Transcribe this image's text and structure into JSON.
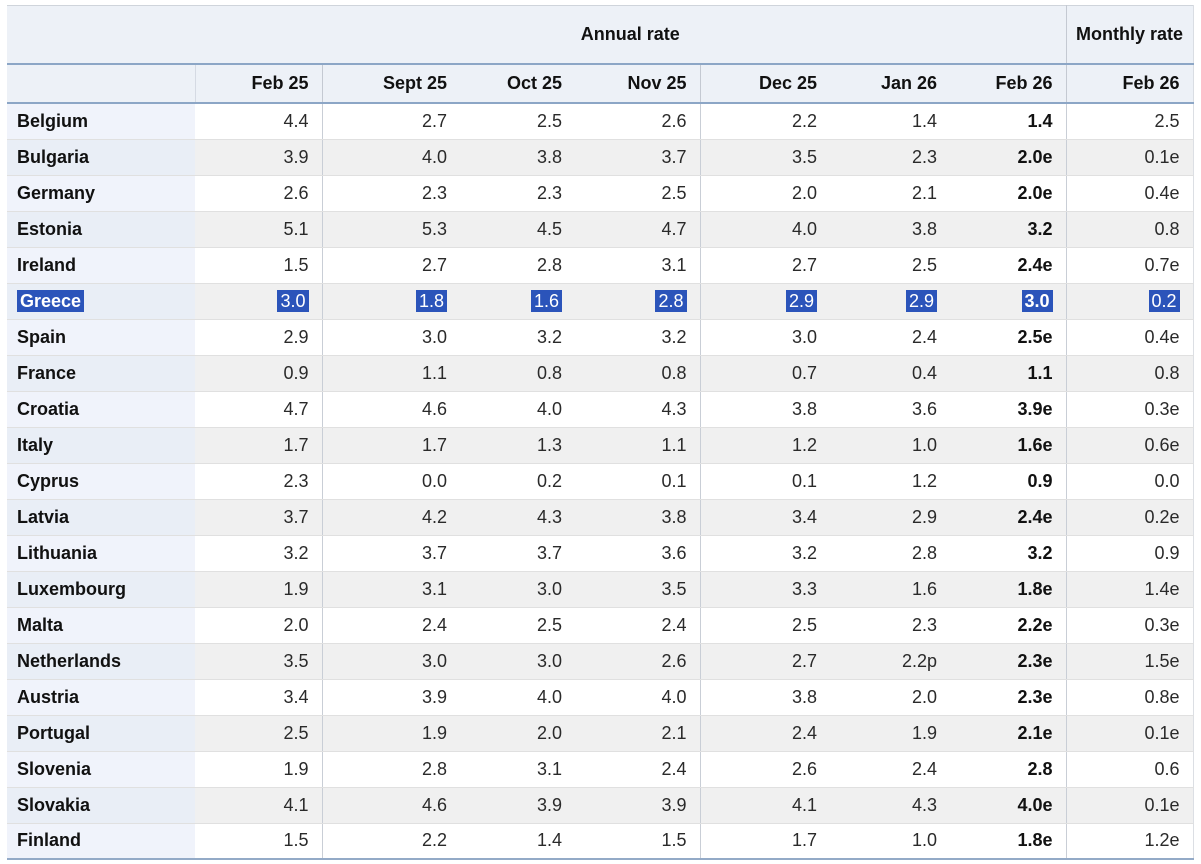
{
  "table": {
    "group_headers": {
      "annual": "Annual rate",
      "monthly": "Monthly rate"
    },
    "columns": [
      "Feb 25",
      "Sept 25",
      "Oct 25",
      "Nov 25",
      "Dec 25",
      "Jan 26",
      "Feb 26"
    ],
    "monthly_column": "Feb 26",
    "rows": [
      {
        "country": "Belgium",
        "values": [
          "4.4",
          "2.7",
          "2.5",
          "2.6",
          "2.2",
          "1.4",
          "1.4",
          "2.5"
        ],
        "selected": false
      },
      {
        "country": "Bulgaria",
        "values": [
          "3.9",
          "4.0",
          "3.8",
          "3.7",
          "3.5",
          "2.3",
          "2.0e",
          "0.1e"
        ],
        "selected": false
      },
      {
        "country": "Germany",
        "values": [
          "2.6",
          "2.3",
          "2.3",
          "2.5",
          "2.0",
          "2.1",
          "2.0e",
          "0.4e"
        ],
        "selected": false
      },
      {
        "country": "Estonia",
        "values": [
          "5.1",
          "5.3",
          "4.5",
          "4.7",
          "4.0",
          "3.8",
          "3.2",
          "0.8"
        ],
        "selected": false
      },
      {
        "country": "Ireland",
        "values": [
          "1.5",
          "2.7",
          "2.8",
          "3.1",
          "2.7",
          "2.5",
          "2.4e",
          "0.7e"
        ],
        "selected": false
      },
      {
        "country": "Greece",
        "values": [
          "3.0",
          "1.8",
          "1.6",
          "2.8",
          "2.9",
          "2.9",
          "3.0",
          "0.2"
        ],
        "selected": true
      },
      {
        "country": "Spain",
        "values": [
          "2.9",
          "3.0",
          "3.2",
          "3.2",
          "3.0",
          "2.4",
          "2.5e",
          "0.4e"
        ],
        "selected": false
      },
      {
        "country": "France",
        "values": [
          "0.9",
          "1.1",
          "0.8",
          "0.8",
          "0.7",
          "0.4",
          "1.1",
          "0.8"
        ],
        "selected": false
      },
      {
        "country": "Croatia",
        "values": [
          "4.7",
          "4.6",
          "4.0",
          "4.3",
          "3.8",
          "3.6",
          "3.9e",
          "0.3e"
        ],
        "selected": false
      },
      {
        "country": "Italy",
        "values": [
          "1.7",
          "1.7",
          "1.3",
          "1.1",
          "1.2",
          "1.0",
          "1.6e",
          "0.6e"
        ],
        "selected": false
      },
      {
        "country": "Cyprus",
        "values": [
          "2.3",
          "0.0",
          "0.2",
          "0.1",
          "0.1",
          "1.2",
          "0.9",
          "0.0"
        ],
        "selected": false
      },
      {
        "country": "Latvia",
        "values": [
          "3.7",
          "4.2",
          "4.3",
          "3.8",
          "3.4",
          "2.9",
          "2.4e",
          "0.2e"
        ],
        "selected": false
      },
      {
        "country": "Lithuania",
        "values": [
          "3.2",
          "3.7",
          "3.7",
          "3.6",
          "3.2",
          "2.8",
          "3.2",
          "0.9"
        ],
        "selected": false
      },
      {
        "country": "Luxembourg",
        "values": [
          "1.9",
          "3.1",
          "3.0",
          "3.5",
          "3.3",
          "1.6",
          "1.8e",
          "1.4e"
        ],
        "selected": false
      },
      {
        "country": "Malta",
        "values": [
          "2.0",
          "2.4",
          "2.5",
          "2.4",
          "2.5",
          "2.3",
          "2.2e",
          "0.3e"
        ],
        "selected": false
      },
      {
        "country": "Netherlands",
        "values": [
          "3.5",
          "3.0",
          "3.0",
          "2.6",
          "2.7",
          "2.2p",
          "2.3e",
          "1.5e"
        ],
        "selected": false
      },
      {
        "country": "Austria",
        "values": [
          "3.4",
          "3.9",
          "4.0",
          "4.0",
          "3.8",
          "2.0",
          "2.3e",
          "0.8e"
        ],
        "selected": false
      },
      {
        "country": "Portugal",
        "values": [
          "2.5",
          "1.9",
          "2.0",
          "2.1",
          "2.4",
          "1.9",
          "2.1e",
          "0.1e"
        ],
        "selected": false
      },
      {
        "country": "Slovenia",
        "values": [
          "1.9",
          "2.8",
          "3.1",
          "2.4",
          "2.6",
          "2.4",
          "2.8",
          "0.6"
        ],
        "selected": false
      },
      {
        "country": "Slovakia",
        "values": [
          "4.1",
          "4.6",
          "3.9",
          "3.9",
          "4.1",
          "4.3",
          "4.0e",
          "0.1e"
        ],
        "selected": false
      },
      {
        "country": "Finland",
        "values": [
          "1.5",
          "2.2",
          "1.4",
          "1.5",
          "1.7",
          "1.0",
          "1.8e",
          "1.2e"
        ],
        "selected": false
      }
    ]
  },
  "colors": {
    "selection_highlight": "#2b54ba",
    "selection_text": "#ffffff",
    "header_bg": "#edf1f7",
    "header_separator_line": "#8ca6c6",
    "row_stripe": "#f0f0f0",
    "country_column_bg": "#f0f3fb"
  }
}
